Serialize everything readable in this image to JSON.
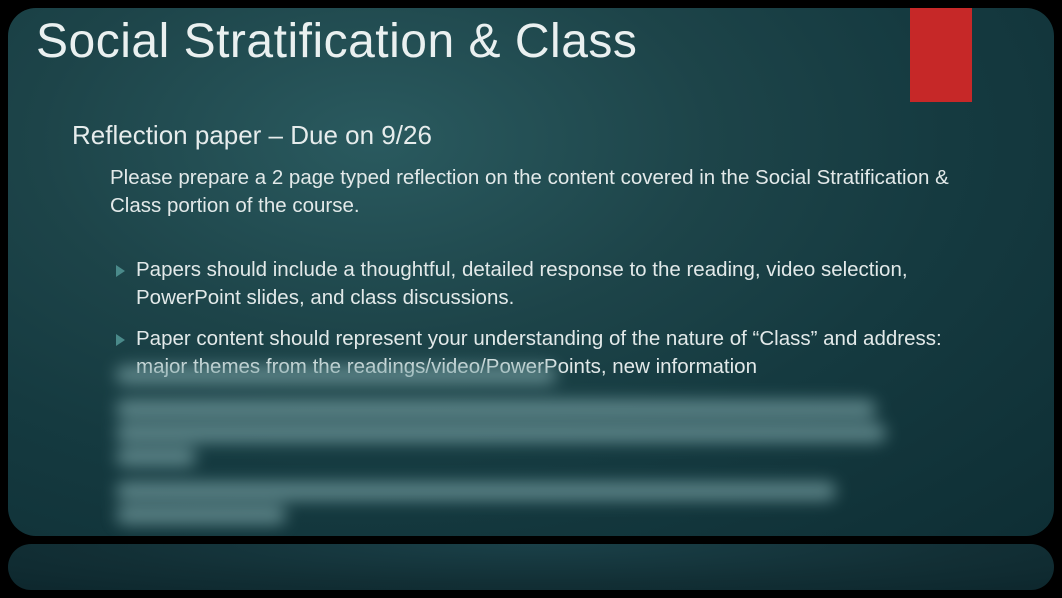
{
  "slide": {
    "title": "Social Stratification & Class",
    "subtitle": "Reflection paper – Due on 9/26",
    "intro": "Please prepare a 2 page typed reflection on the content covered in the Social Stratification & Class portion of the course.",
    "bullets": [
      "Papers should include a thoughtful, detailed response to the reading, video selection, PowerPoint slides, and class discussions.",
      "Paper content should represent your understanding of the nature of “Class” and address: major themes from the readings/video/PowerPoints, new information"
    ]
  },
  "style": {
    "background_gradient": [
      "#2a5a5f",
      "#1d4449",
      "#153a40",
      "#0e2e34"
    ],
    "accent_color": "#c62828",
    "bullet_marker_color": "#4a8a8a",
    "text_color": "#e2e9e9",
    "title_color": "#eaf0f0",
    "title_fontsize": 48,
    "subtitle_fontsize": 26,
    "body_fontsize": 20.5,
    "border_radius": 28,
    "font_family": "Verdana"
  }
}
